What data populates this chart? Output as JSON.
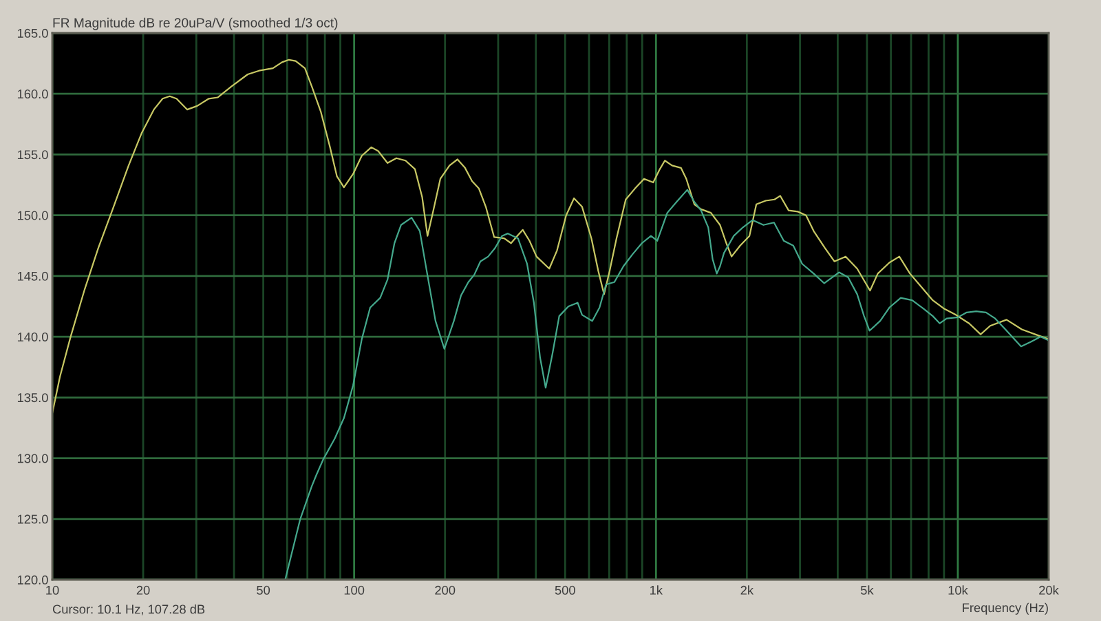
{
  "chart_data": {
    "type": "line",
    "title": "FR Magnitude dB re 20uPa/V (smoothed 1/3 oct)",
    "xlabel": "Frequency (Hz)",
    "annotations": [
      "Cursor: 10.1 Hz, 107.28 dB"
    ],
    "log": "x",
    "grid": true,
    "line_style": "solid",
    "xlim": [
      10,
      20000
    ],
    "ylim": [
      120,
      165
    ],
    "xticks": [
      10,
      20,
      {
        "value": 30,
        "label": null
      },
      {
        "value": 40,
        "label": null
      },
      50,
      {
        "value": 60,
        "label": null
      },
      {
        "value": 70,
        "label": null
      },
      {
        "value": 80,
        "label": null
      },
      {
        "value": 90,
        "label": null
      },
      100,
      200,
      {
        "value": 300,
        "label": null
      },
      {
        "value": 400,
        "label": null
      },
      500,
      {
        "value": 600,
        "label": null
      },
      {
        "value": 700,
        "label": null
      },
      {
        "value": 800,
        "label": null
      },
      {
        "value": 900,
        "label": null
      },
      {
        "value": 1000,
        "label": "1k"
      },
      {
        "value": 2000,
        "label": "2k"
      },
      {
        "value": 3000,
        "label": null
      },
      {
        "value": 4000,
        "label": null
      },
      {
        "value": 5000,
        "label": "5k"
      },
      {
        "value": 6000,
        "label": null
      },
      {
        "value": 7000,
        "label": null
      },
      {
        "value": 8000,
        "label": null
      },
      {
        "value": 9000,
        "label": null
      },
      {
        "value": 10000,
        "label": "10k"
      },
      {
        "value": 20000,
        "label": "20k"
      }
    ],
    "yticks": [
      {
        "value": 120,
        "label": "120.0"
      },
      {
        "value": 125,
        "label": "125.0"
      },
      {
        "value": 130,
        "label": "130.0"
      },
      {
        "value": 135,
        "label": "135.0"
      },
      {
        "value": 140,
        "label": "140.0"
      },
      {
        "value": 145,
        "label": "145.0"
      },
      {
        "value": 150,
        "label": "150.0"
      },
      {
        "value": 155,
        "label": "155.0"
      },
      {
        "value": 160,
        "label": "160.0"
      },
      {
        "value": 165,
        "label": "165.0"
      }
    ],
    "series": [
      {
        "color": "#c8c864",
        "x": [
          10,
          10.6,
          11.5,
          12.8,
          14.2,
          15.8,
          17.9,
          19.8,
          21.7,
          23.2,
          24.5,
          25.8,
          28.0,
          30.2,
          33.0,
          35.3,
          39.2,
          44.4,
          48.4,
          53.8,
          57.7,
          60.8,
          64.0,
          68.7,
          72.4,
          77.6,
          83.2,
          87.7,
          92.5,
          99.2,
          106,
          114,
          120,
          129,
          138,
          148,
          159,
          168,
          175,
          183,
          193,
          207,
          220,
          233,
          246,
          259,
          273,
          291,
          314,
          331,
          347,
          362,
          381,
          402,
          443,
          470,
          504,
          535,
          569,
          611,
          644,
          673,
          702,
          740,
          794,
          852,
          913,
          979,
          1030,
          1070,
          1130,
          1210,
          1260,
          1340,
          1410,
          1520,
          1630,
          1710,
          1780,
          1900,
          2040,
          2150,
          2310,
          2470,
          2580,
          2750,
          2950,
          3140,
          3330,
          3630,
          3900,
          4250,
          4640,
          4980,
          5120,
          5430,
          5930,
          6400,
          6940,
          7570,
          8260,
          9020,
          9850,
          10900,
          11900,
          12800,
          14500,
          16300,
          18500,
          20000
        ],
        "values": [
          133.7,
          136.7,
          140.0,
          143.9,
          147.3,
          150.4,
          154.1,
          156.8,
          158.7,
          159.6,
          159.8,
          159.6,
          158.7,
          159.0,
          159.6,
          159.7,
          160.6,
          161.6,
          161.9,
          162.1,
          162.6,
          162.8,
          162.7,
          162.1,
          160.6,
          158.5,
          155.6,
          153.2,
          152.3,
          153.4,
          154.9,
          155.6,
          155.3,
          154.3,
          154.7,
          154.5,
          153.8,
          151.5,
          148.3,
          150.4,
          153.0,
          154.1,
          154.6,
          153.9,
          152.8,
          152.2,
          150.7,
          148.2,
          148.1,
          147.7,
          148.3,
          148.8,
          147.9,
          146.6,
          145.6,
          147.1,
          150.0,
          151.4,
          150.7,
          148.1,
          145.4,
          143.5,
          145.4,
          148.1,
          151.3,
          152.2,
          153.0,
          152.7,
          153.8,
          154.5,
          154.1,
          153.9,
          153.0,
          150.9,
          150.5,
          150.2,
          149.2,
          147.7,
          146.6,
          147.5,
          148.3,
          150.9,
          151.2,
          151.3,
          151.6,
          150.4,
          150.3,
          150.0,
          148.7,
          147.3,
          146.2,
          146.6,
          145.6,
          144.3,
          143.8,
          145.2,
          146.1,
          146.6,
          145.2,
          144.1,
          143.0,
          142.3,
          141.8,
          141.1,
          140.2,
          140.9,
          141.4,
          140.6,
          140.1,
          139.8
        ]
      },
      {
        "color": "#44a88c",
        "x": [
          59.1,
          66.3,
          72.4,
          74.9,
          79.0,
          86.2,
          92.5,
          99.2,
          106,
          113,
          122,
          129,
          136,
          143,
          155,
          165,
          174,
          186,
          199,
          214,
          226,
          239,
          250,
          262,
          278,
          293,
          309,
          323,
          349,
          374,
          394,
          413,
          431,
          454,
          478,
          513,
          550,
          569,
          615,
          650,
          683,
          728,
          780,
          837,
          898,
          962,
          1010,
          1090,
          1170,
          1270,
          1340,
          1410,
          1490,
          1540,
          1590,
          1630,
          1680,
          1810,
          1940,
          2090,
          2270,
          2460,
          2650,
          2850,
          3050,
          3330,
          3610,
          4040,
          4330,
          4640,
          4890,
          5100,
          5530,
          5930,
          6470,
          7060,
          7710,
          8260,
          8710,
          9180,
          10000,
          10700,
          11500,
          12400,
          13300,
          14500,
          16200,
          17500,
          18800,
          20000
        ],
        "values": [
          120.0,
          125.0,
          127.7,
          128.6,
          129.9,
          131.6,
          133.3,
          136.0,
          139.8,
          142.4,
          143.2,
          144.7,
          147.7,
          149.2,
          149.8,
          148.7,
          145.4,
          141.3,
          139.0,
          141.3,
          143.4,
          144.5,
          145.1,
          146.2,
          146.6,
          147.3,
          148.3,
          148.5,
          148.1,
          146.0,
          142.8,
          138.3,
          135.8,
          138.6,
          141.7,
          142.5,
          142.8,
          141.8,
          141.3,
          142.4,
          144.3,
          144.5,
          145.8,
          146.8,
          147.7,
          148.3,
          147.9,
          150.2,
          151.1,
          152.1,
          151.1,
          150.4,
          149.0,
          146.4,
          145.2,
          145.8,
          146.9,
          148.3,
          149.0,
          149.6,
          149.2,
          149.4,
          147.9,
          147.5,
          146.0,
          145.2,
          144.4,
          145.3,
          144.9,
          143.5,
          141.7,
          140.5,
          141.3,
          142.4,
          143.2,
          143.0,
          142.3,
          141.7,
          141.1,
          141.5,
          141.6,
          142.0,
          142.1,
          142.0,
          141.5,
          140.5,
          139.2,
          139.6,
          140.0,
          139.7
        ]
      }
    ]
  }
}
